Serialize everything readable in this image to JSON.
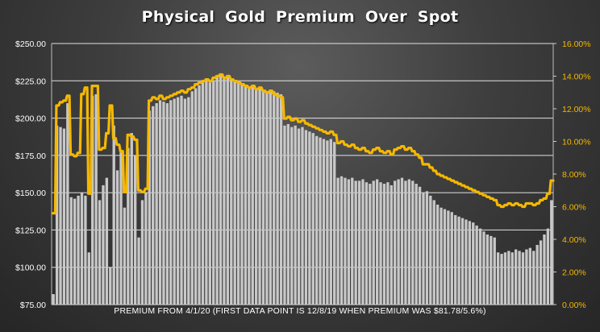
{
  "chart_data": {
    "type": "bar+line",
    "title": "Physical Gold Premium Over Spot",
    "xlabel": "PREMIUM FROM 4/1/20 (FIRST DATA POINT IS 12/8/19 WHEN PREMIUM WAS $81.78/5.6%)",
    "left_axis": {
      "ylim": [
        75,
        250
      ],
      "ticks": [
        "$75.00",
        "$100.00",
        "$125.00",
        "$150.00",
        "$175.00",
        "$200.00",
        "$225.00",
        "$250.00"
      ],
      "tick_values": [
        75,
        100,
        125,
        150,
        175,
        200,
        225,
        250
      ]
    },
    "right_axis": {
      "ylim": [
        0,
        16
      ],
      "ticks": [
        "0.00%",
        "2.00%",
        "4.00%",
        "6.00%",
        "8.00%",
        "10.00%",
        "12.00%",
        "14.00%",
        "16.00%"
      ],
      "tick_values": [
        0,
        2,
        4,
        6,
        8,
        10,
        12,
        14,
        16
      ]
    },
    "grid": true,
    "series": [
      {
        "kind": "bar",
        "axis": "left",
        "color": "#c8c8c8",
        "values": [
          82,
          195,
          194,
          193,
          210,
          147,
          146,
          148,
          150,
          148,
          110,
          215,
          216,
          145,
          155,
          160,
          100,
          195,
          165,
          177,
          140,
          180,
          190,
          175,
          120,
          145,
          150,
          205,
          208,
          210,
          212,
          211,
          210,
          212,
          213,
          214,
          215,
          213,
          214,
          218,
          220,
          222,
          224,
          226,
          224,
          225,
          228,
          230,
          227,
          229,
          226,
          225,
          224,
          223,
          222,
          221,
          222,
          220,
          221,
          219,
          218,
          219,
          218,
          217,
          216,
          195,
          196,
          194,
          195,
          193,
          194,
          192,
          191,
          190,
          188,
          187,
          186,
          185,
          186,
          184,
          160,
          161,
          160,
          159,
          160,
          158,
          158,
          159,
          157,
          156,
          158,
          159,
          157,
          156,
          157,
          155,
          158,
          159,
          160,
          158,
          159,
          158,
          156,
          154,
          150,
          151,
          148,
          145,
          142,
          140,
          139,
          138,
          137,
          135,
          134,
          133,
          132,
          131,
          130,
          128,
          126,
          124,
          122,
          121,
          120,
          110,
          109,
          110,
          111,
          110,
          112,
          111,
          110,
          112,
          113,
          111,
          115,
          118,
          122,
          126,
          145
        ]
      },
      {
        "kind": "line",
        "axis": "right",
        "color": "#f5b800",
        "values": [
          5.6,
          12.2,
          12.4,
          12.5,
          12.8,
          9.2,
          9.1,
          9.3,
          12.9,
          13.3,
          6.8,
          13.4,
          13.4,
          9.5,
          9.6,
          10.5,
          12.2,
          10.2,
          9.8,
          9.4,
          6.9,
          10.4,
          10.3,
          10.1,
          7.0,
          6.9,
          7.1,
          12.5,
          12.7,
          12.6,
          12.8,
          12.6,
          12.7,
          12.8,
          12.9,
          13.0,
          13.1,
          13.0,
          13.2,
          13.3,
          13.5,
          13.6,
          13.7,
          13.8,
          13.7,
          13.9,
          14.0,
          14.1,
          13.9,
          14.0,
          13.8,
          13.7,
          13.6,
          13.5,
          13.4,
          13.3,
          13.4,
          13.2,
          13.3,
          13.1,
          13.0,
          13.1,
          12.9,
          12.8,
          12.7,
          11.4,
          11.5,
          11.3,
          11.4,
          11.2,
          11.3,
          11.1,
          11.0,
          10.9,
          10.8,
          10.7,
          10.6,
          10.5,
          10.6,
          10.4,
          9.9,
          10.0,
          9.8,
          9.7,
          9.8,
          9.6,
          9.5,
          9.6,
          9.4,
          9.3,
          9.5,
          9.6,
          9.4,
          9.3,
          9.4,
          9.2,
          9.5,
          9.6,
          9.7,
          9.5,
          9.6,
          9.4,
          9.2,
          9.0,
          8.6,
          8.6,
          8.4,
          8.2,
          8.0,
          7.9,
          7.8,
          7.7,
          7.6,
          7.5,
          7.4,
          7.3,
          7.2,
          7.1,
          7.0,
          6.9,
          6.8,
          6.7,
          6.6,
          6.5,
          6.4,
          6.1,
          6.0,
          6.1,
          6.2,
          6.1,
          6.2,
          6.1,
          6.0,
          6.2,
          6.2,
          6.1,
          6.2,
          6.4,
          6.5,
          6.8,
          7.6
        ]
      }
    ]
  }
}
